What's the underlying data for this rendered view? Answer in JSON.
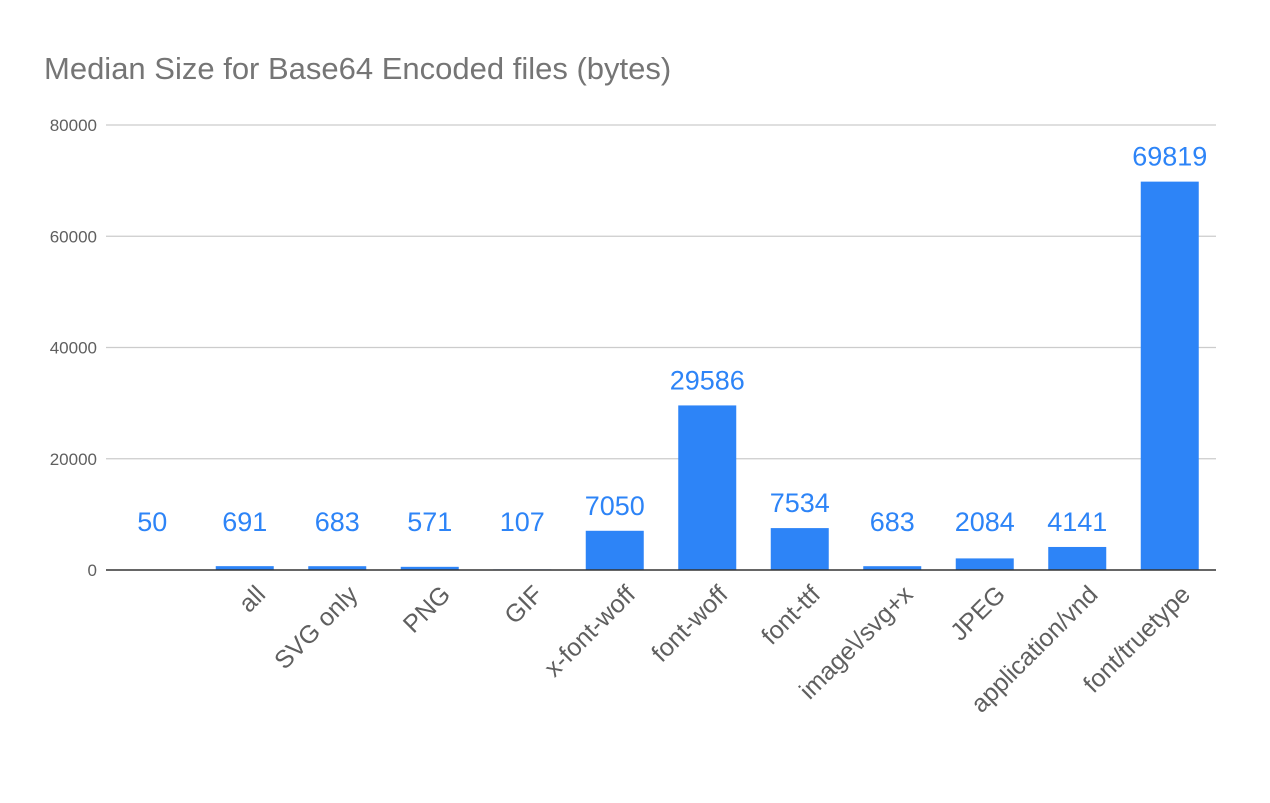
{
  "chart_data": {
    "type": "bar",
    "title": "Median Size for Base64 Encoded files (bytes)",
    "xlabel": "",
    "ylabel": "",
    "categories": [
      "",
      "all",
      "SVG only",
      "PNG",
      "GIF",
      "x-font-woff",
      "font-woff",
      "font-ttf",
      "image\\/svg+x",
      "JPEG",
      "application/vnd",
      "font/truetype"
    ],
    "values": [
      50,
      691,
      683,
      571,
      107,
      7050,
      29586,
      7534,
      683,
      2084,
      4141,
      69819
    ],
    "data_labels": [
      "50",
      "691",
      "683",
      "571",
      "107",
      "7050",
      "29586",
      "7534",
      "683",
      "2084",
      "4141",
      "69819"
    ],
    "ylim": [
      0,
      80000
    ],
    "yticks": [
      0,
      20000,
      40000,
      60000,
      80000
    ],
    "ytick_labels": [
      "0",
      "20000",
      "40000",
      "60000",
      "80000"
    ],
    "grid": true,
    "legend": "none",
    "colors": {
      "bar": "#2d84f7",
      "label": "#2d84f7",
      "title": "#757575",
      "axis_text": "#5f5f5f",
      "grid": "#cccccc",
      "baseline": "#333333"
    }
  }
}
